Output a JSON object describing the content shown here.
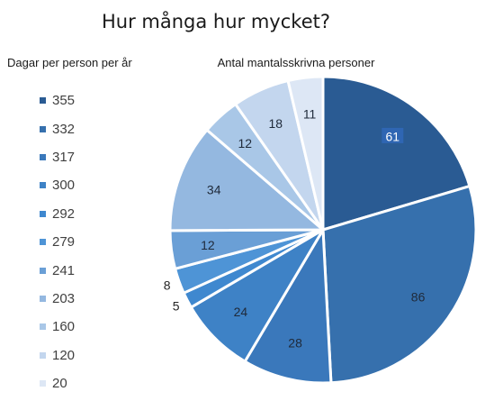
{
  "chart_data": {
    "type": "pie",
    "title": "Hur många hur mycket?",
    "legend_title": "Dagar per person per år",
    "series_title": "Antal mantalsskrivna personer",
    "categories": [
      "355",
      "332",
      "317",
      "300",
      "292",
      "279",
      "241",
      "203",
      "160",
      "120",
      "20"
    ],
    "values": [
      61,
      86,
      28,
      24,
      5,
      8,
      12,
      34,
      12,
      18,
      11
    ],
    "colors": [
      "#2a5b93",
      "#3670ad",
      "#3a78bb",
      "#3e82c6",
      "#3f88cf",
      "#4e94d6",
      "#6a9fd6",
      "#94b8e0",
      "#a9c7e7",
      "#c3d6ee",
      "#dde7f5"
    ],
    "legend_placement": "left",
    "start_angle_deg": 0,
    "direction": "clockwise"
  }
}
